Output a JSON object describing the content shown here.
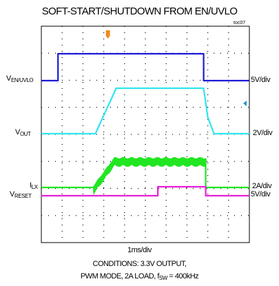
{
  "title": "SOFT-START/SHUTDOWN FROM EN/UVLO",
  "figure_id": "toc07",
  "time_scale": "1ms/div",
  "conditions": {
    "line1": "CONDITIONS: 3.3V OUTPUT,",
    "line2_prefix": "PWM MODE, 2A LOAD, f",
    "line2_sub": "SW",
    "line2_suffix": " = 400kHz"
  },
  "channels": [
    {
      "key": "en",
      "label_main": "V",
      "label_sub": "EN/UVLO",
      "scale": "5V/div",
      "color": "#1a1ad6"
    },
    {
      "key": "vout",
      "label_main": "V",
      "label_sub": "OUT",
      "scale": "2V/div",
      "color": "#2ee6f0"
    },
    {
      "key": "ilx",
      "label_main": "I",
      "label_sub": "LX",
      "scale": "2A/div",
      "color": "#22e622"
    },
    {
      "key": "reset",
      "label_main": "V",
      "label_sub": "RESET",
      "scale": "5V/div",
      "color": "#e61ed6"
    }
  ],
  "markers": {
    "trigger_color": "#f08a1e",
    "level_color": "#1a9ad6"
  },
  "chart_data": {
    "type": "line",
    "x_unit": "ms",
    "xlim": [
      0,
      10
    ],
    "grid": true,
    "series": [
      {
        "name": "VEN/UVLO",
        "x": [
          0,
          0.8,
          0.8,
          7.8,
          7.8,
          10
        ],
        "y": [
          0,
          0,
          1,
          1,
          0,
          0
        ],
        "y_unit": "div"
      },
      {
        "name": "VOUT",
        "x": [
          0,
          2.6,
          3.6,
          7.8,
          8.0,
          8.3,
          10
        ],
        "y": [
          0,
          0,
          1.65,
          1.65,
          0.6,
          0,
          0
        ],
        "y_unit": "div"
      },
      {
        "name": "ILX",
        "x": [
          0,
          2.5,
          3.5,
          7.9,
          7.9,
          10
        ],
        "y": [
          0,
          0,
          1.0,
          1.0,
          0,
          0
        ],
        "y_unit": "div"
      },
      {
        "name": "VRESET",
        "x": [
          0,
          5.6,
          5.6,
          7.9,
          7.9,
          10
        ],
        "y": [
          0,
          0,
          1.0,
          1.0,
          0,
          0
        ],
        "y_unit": "div"
      }
    ]
  }
}
